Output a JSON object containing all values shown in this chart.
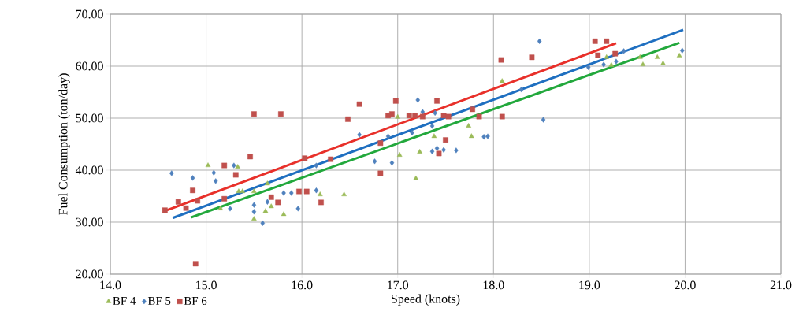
{
  "chart_data": {
    "type": "scatter",
    "xlabel": "Speed (knots)",
    "ylabel": "Fuel Consumption (ton/day)",
    "xlim": [
      14,
      21
    ],
    "ylim": [
      20,
      70
    ],
    "xticks": [
      {
        "value": 14,
        "label": "14.0"
      },
      {
        "value": 15,
        "label": "15.0"
      },
      {
        "value": 16,
        "label": "16.0"
      },
      {
        "value": 17,
        "label": "17.0"
      },
      {
        "value": 18,
        "label": "18.0"
      },
      {
        "value": 19,
        "label": "19.0"
      },
      {
        "value": 20,
        "label": "20.0"
      },
      {
        "value": 21,
        "label": "21.0"
      }
    ],
    "yticks": [
      {
        "value": 20,
        "label": "20.00"
      },
      {
        "value": 30,
        "label": "30.00"
      },
      {
        "value": 40,
        "label": "40.00"
      },
      {
        "value": 50,
        "label": "50.00"
      },
      {
        "value": 60,
        "label": "60.00"
      },
      {
        "value": 70,
        "label": "70.00"
      }
    ],
    "grid": true,
    "legend": "bottom left",
    "series": [
      {
        "name": "BF 4",
        "color": "#9bbb59",
        "marker": "triangle",
        "x": [
          15.02,
          15.33,
          15.34,
          15.38,
          15.5,
          15.64,
          15.5,
          15.62,
          15.81,
          16.19,
          16.44,
          15.15,
          15.68,
          17.0,
          17.02,
          17.23,
          17.19,
          17.38,
          17.74,
          17.77,
          18.09,
          19.18,
          19.23,
          19.53,
          19.56,
          19.71,
          19.77,
          19.94
        ],
        "values": [
          40.9,
          40.6,
          35.9,
          35.9,
          35.9,
          37.4,
          30.6,
          32.1,
          31.5,
          35.3,
          35.3,
          32.6,
          33.0,
          50.2,
          42.9,
          43.5,
          38.4,
          46.5,
          48.5,
          46.5,
          57.1,
          61.7,
          60.2,
          61.7,
          60.3,
          61.7,
          60.5,
          62.0
        ]
      },
      {
        "name": "BF 5",
        "color": "#4f81bd",
        "marker": "diamond",
        "x": [
          14.64,
          14.86,
          15.08,
          15.1,
          15.29,
          15.25,
          15.5,
          15.5,
          15.59,
          15.64,
          15.81,
          15.89,
          15.96,
          16.15,
          16.15,
          16.6,
          16.9,
          16.76,
          16.94,
          17.15,
          17.21,
          17.26,
          17.39,
          17.36,
          17.36,
          17.41,
          17.48,
          17.61,
          17.9,
          17.94,
          18.29,
          18.52,
          18.48,
          18.99,
          19.15,
          19.28,
          19.36,
          19.97
        ],
        "values": [
          39.4,
          38.5,
          39.5,
          37.9,
          40.9,
          32.6,
          33.3,
          32.0,
          29.8,
          33.9,
          35.6,
          35.6,
          32.6,
          36.1,
          40.9,
          46.8,
          46.5,
          41.7,
          41.4,
          47.2,
          53.5,
          51.2,
          51.0,
          48.5,
          43.6,
          44.2,
          43.9,
          43.8,
          46.4,
          46.5,
          55.5,
          49.7,
          64.8,
          59.8,
          60.3,
          60.9,
          62.9,
          63.0
        ]
      },
      {
        "name": "BF 6",
        "color": "#c0504d",
        "marker": "square",
        "x": [
          14.57,
          14.71,
          14.79,
          14.86,
          14.91,
          14.89,
          15.19,
          15.31,
          15.19,
          15.46,
          15.5,
          15.78,
          15.75,
          15.68,
          16.03,
          15.97,
          16.05,
          16.2,
          16.3,
          16.48,
          16.6,
          16.98,
          16.9,
          16.94,
          17.12,
          17.18,
          17.26,
          17.41,
          17.48,
          17.53,
          17.78,
          17.85,
          18.09,
          16.82,
          17.5,
          17.43,
          16.82,
          18.08,
          18.4,
          19.06,
          19.18,
          19.09,
          19.27
        ],
        "values": [
          32.3,
          33.9,
          32.7,
          36.1,
          34.1,
          22.0,
          40.9,
          39.1,
          34.5,
          42.6,
          50.8,
          50.8,
          33.8,
          34.8,
          42.3,
          35.9,
          35.9,
          33.8,
          42.1,
          49.8,
          52.7,
          53.3,
          50.5,
          50.8,
          50.5,
          50.5,
          50.3,
          53.3,
          50.5,
          50.3,
          51.7,
          50.3,
          50.3,
          45.2,
          45.8,
          43.2,
          39.4,
          61.2,
          61.7,
          64.8,
          64.8,
          62.1,
          62.4
        ]
      },
      {
        "type": "line",
        "color": "#22a83c",
        "x": [
          14.84,
          19.94
        ],
        "values": [
          30.9,
          64.5
        ]
      },
      {
        "type": "line",
        "color": "#1f6fc0",
        "x": [
          14.65,
          19.98
        ],
        "values": [
          30.8,
          67.0
        ]
      },
      {
        "type": "line",
        "color": "#e8302a",
        "x": [
          14.59,
          19.28
        ],
        "values": [
          32.3,
          64.4
        ]
      }
    ]
  }
}
